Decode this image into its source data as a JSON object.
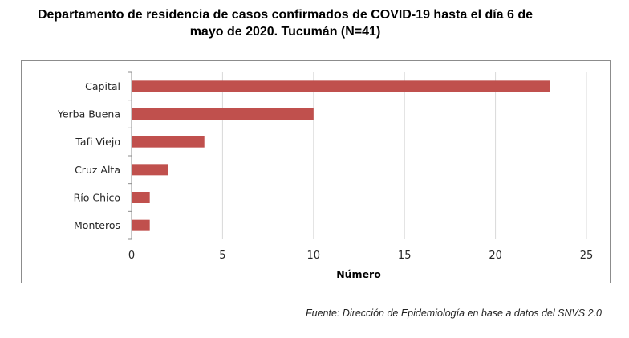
{
  "chart_data": {
    "type": "bar",
    "orientation": "horizontal",
    "title": [
      "Departamento de residencia de casos confirmados de COVID-19 hasta el día 6 de",
      "mayo de 2020. Tucumán (N=41)"
    ],
    "categories": [
      "Capital",
      "Yerba Buena",
      "Tafi Viejo",
      "Cruz Alta",
      "Río Chico",
      "Monteros"
    ],
    "values": [
      23,
      10,
      4,
      2,
      1,
      1
    ],
    "xlabel": "Número",
    "ylabel": "",
    "xlim": [
      0,
      25
    ],
    "xticks": [
      0,
      5,
      10,
      15,
      20,
      25
    ],
    "grid": "vertical",
    "bar_color": "#c0504d",
    "source": "Fuente: Dirección de Epidemiología en base a datos del SNVS 2.0"
  }
}
